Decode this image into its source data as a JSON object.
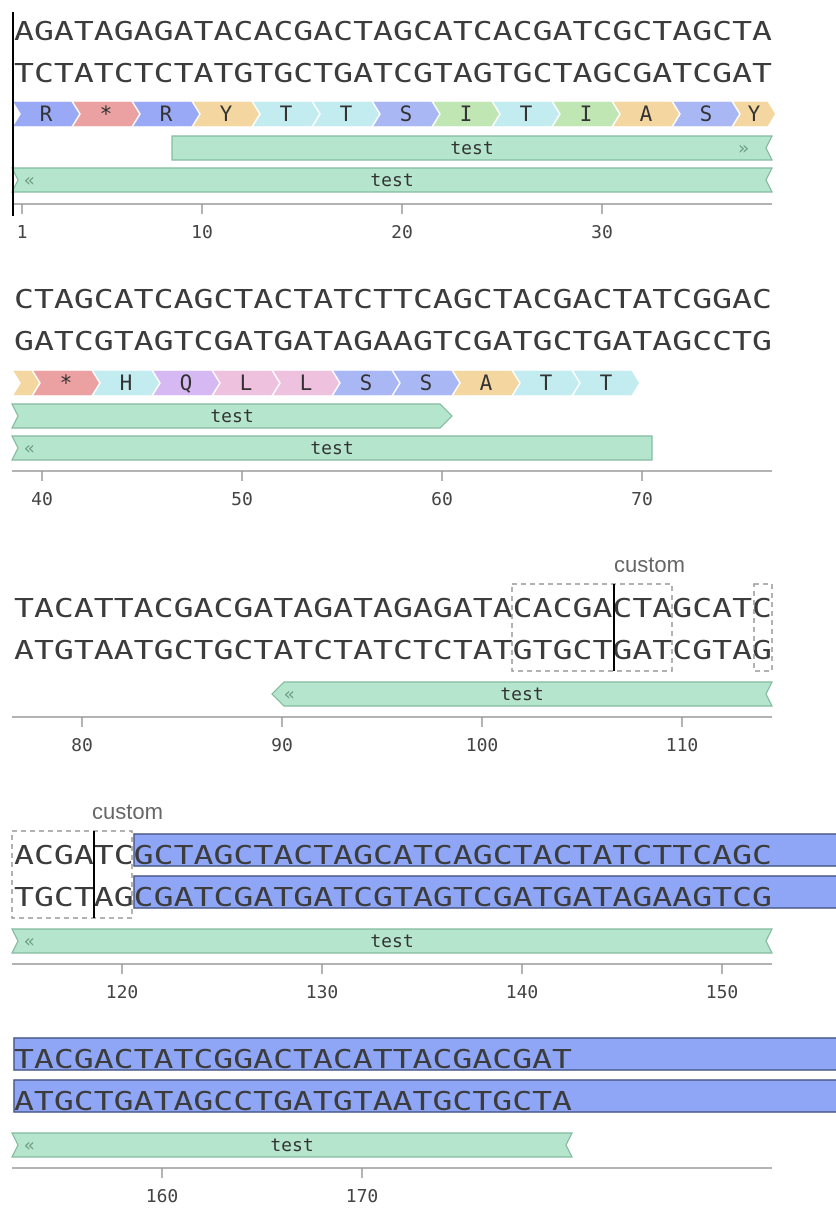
{
  "colors": {
    "feature_fill": "#b5e6cd",
    "feature_stroke": "#7fb89b",
    "highlight": "#8ea6f5",
    "axis": "#9a9a9a",
    "cursor": "#000000",
    "aa": {
      "R": "#9aa9f5",
      "*": "#eba1a1",
      "Y": "#f4d6a1",
      "T": "#c3ecf0",
      "S": "#a9b8f5",
      "I": "#bfe6b3",
      "A": "#f4d6a1",
      "H": "#c3ecf0",
      "Q": "#d6b9f3",
      "L": "#eec2de",
      "": "#f4d6a1"
    }
  },
  "rows": [
    {
      "top": "AGATAGAGATACACGACTAGCATCACGATCGCTAGCTA",
      "bottom": "TCTATCTCTATGTGCTGATCGTAGTGCTAGCGATCGAT",
      "start": 1,
      "translation": [
        {
          "aa": "R"
        },
        {
          "aa": "*"
        },
        {
          "aa": "R"
        },
        {
          "aa": "Y"
        },
        {
          "aa": "T"
        },
        {
          "aa": "T"
        },
        {
          "aa": "S"
        },
        {
          "aa": "I"
        },
        {
          "aa": "T"
        },
        {
          "aa": "I"
        },
        {
          "aa": "A"
        },
        {
          "aa": "S"
        },
        {
          "aa": "Y"
        }
      ],
      "features": [
        {
          "label": "test",
          "strand": "fwd",
          "from": 9,
          "to": 38,
          "cont_right": true
        },
        {
          "label": "test",
          "strand": "rev",
          "from": 1,
          "to": 38,
          "cont_left": true,
          "cont_right": true
        }
      ],
      "ticks": [
        1,
        10,
        20,
        30
      ],
      "cursor_after": 0
    },
    {
      "top": "CTAGCATCAGCTACTATCTTCAGCTACGACTATCGGAC",
      "bottom": "GATCGTAGTCGATGATAGAAGTCGATGCTGATAGCCTG",
      "start": 39,
      "translation": [
        {
          "aa": ""
        },
        {
          "aa": "*"
        },
        {
          "aa": "H"
        },
        {
          "aa": "Q"
        },
        {
          "aa": "L"
        },
        {
          "aa": "L"
        },
        {
          "aa": "S"
        },
        {
          "aa": "S"
        },
        {
          "aa": "A"
        },
        {
          "aa": "T"
        },
        {
          "aa": "T"
        }
      ],
      "features": [
        {
          "label": "test",
          "strand": "fwd",
          "from": 39,
          "to": 60,
          "cont_left": true
        },
        {
          "label": "test",
          "strand": "rev",
          "from": 39,
          "to": 70,
          "cont_left": true
        }
      ],
      "ticks": [
        40,
        50,
        60,
        70
      ]
    },
    {
      "top": "TACATTACGACGATAGATAGAGATACACGACTAGCATC",
      "bottom": "ATGTAATGCTGCTATCTATCTCTATGTGCTGATCGTAG",
      "start": 77,
      "custom_label": "custom",
      "features": [
        {
          "label": "test",
          "strand": "rev",
          "from": 90,
          "to": 114,
          "cont_right": true
        }
      ],
      "ticks": [
        80,
        90,
        100,
        110
      ]
    },
    {
      "top": "ACGATCGCTAGCTACTAGCATCAGCTACTATCTTCAGC",
      "bottom": "TGCTAGCGATCGATGATCGTAGTCGATGATAGAAGTCG",
      "start": 115,
      "custom_label": "custom",
      "features": [
        {
          "label": "test",
          "strand": "rev",
          "from": 115,
          "to": 152,
          "cont_left": true,
          "cont_right": true
        }
      ],
      "ticks": [
        120,
        130,
        140,
        150
      ]
    },
    {
      "top": "TACGACTATCGGACTACATTACGACGAT",
      "bottom": "ATGCTGATAGCCTGATGTAATGCTGCTA",
      "start": 153,
      "features": [
        {
          "label": "test",
          "strand": "rev",
          "from": 153,
          "to": 180,
          "cont_left": true,
          "cont_right": true
        }
      ],
      "ticks": [
        160,
        170
      ]
    }
  ]
}
